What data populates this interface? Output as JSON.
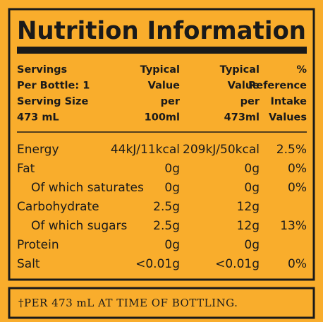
{
  "title": "Nutrition Information",
  "header": [
    [
      "Servings",
      "Per Bottle: 1",
      "Serving Size",
      "473 mL"
    ],
    [
      "Typical",
      "Value",
      "per",
      "100ml"
    ],
    [
      "Typical",
      "Value",
      "per",
      "473ml"
    ],
    [
      "%",
      "Reference",
      "Intake",
      "Values"
    ]
  ],
  "rows": [
    {
      "name": "Energy",
      "per_100ml": "44kJ/11kcal",
      "per_serving": "209kJ/50kcal",
      "ri": "2.5%"
    },
    {
      "name": "Fat",
      "per_100ml": "0g",
      "per_serving": "0g",
      "ri": "0%"
    },
    {
      "name": "Of which saturates",
      "per_100ml": "0g",
      "per_serving": "0g",
      "ri": "0%"
    },
    {
      "name": "Carbohydrate",
      "per_100ml": "2.5g",
      "per_serving": "12g"
    },
    {
      "name": "Of which sugars",
      "per_100ml": "2.5g",
      "per_serving": "12g",
      "ri": "13%"
    },
    {
      "name": "Protein",
      "per_100ml": "0g",
      "per_serving": "0g"
    },
    {
      "name": "Salt",
      "per_100ml": "<0.01g",
      "per_serving": "<0.01g",
      "ri": "0%"
    }
  ],
  "footnote": "†PER 473 mL AT TIME OF BOTTLING."
}
